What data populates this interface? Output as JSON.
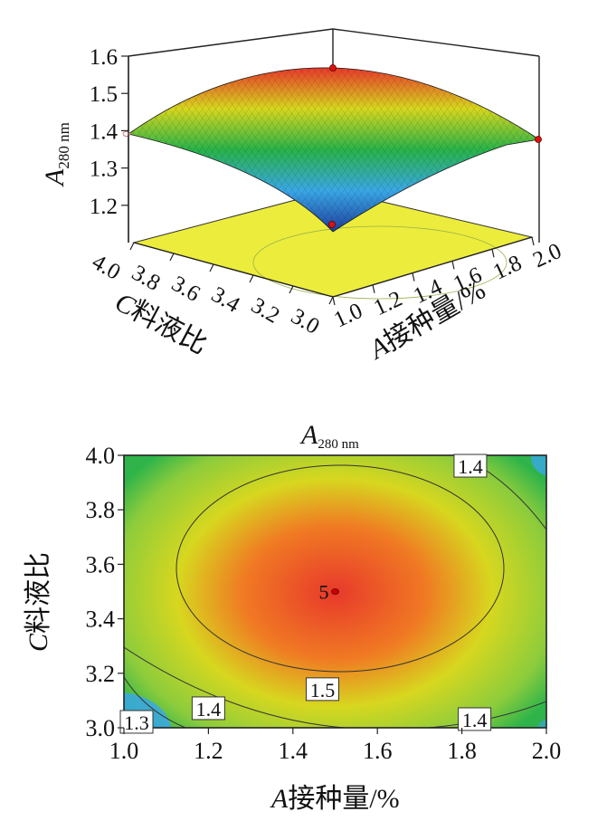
{
  "chart_data": [
    {
      "type": "surface3d",
      "zlabel_main": "A",
      "zlabel_sub": "280 nm",
      "xlabel_var": "A",
      "xlabel_text": "接种量/%",
      "ylabel_var": "C",
      "ylabel_text": "料液比",
      "x_ticks": [
        "1.0",
        "1.2",
        "1.4",
        "1.6",
        "1.8",
        "2.0"
      ],
      "y_ticks": [
        "3.0",
        "3.2",
        "3.4",
        "3.6",
        "3.8",
        "4.0"
      ],
      "z_ticks": [
        "1.2",
        "1.3",
        "1.4",
        "1.5",
        "1.6"
      ],
      "xlim": [
        1.0,
        2.0
      ],
      "ylim": [
        3.0,
        4.0
      ],
      "zlim": [
        1.1,
        1.6
      ],
      "peak": {
        "x": 1.5,
        "y": 3.5,
        "z": 1.56
      },
      "corner_values": {
        "x1_y3": 1.14,
        "x2_y3": 1.36,
        "x1_y4": 1.38,
        "x2_y4": 1.34
      },
      "floor_color": "#ecec3c",
      "colormap": [
        "#1e3f9e",
        "#3aa7e6",
        "#29b34a",
        "#d7d71f",
        "#e8392b"
      ]
    },
    {
      "type": "contour",
      "title_main": "A",
      "title_sub": "280 nm",
      "xlabel_var": "A",
      "xlabel_text": "接种量/%",
      "ylabel_var": "C",
      "ylabel_text": "料液比",
      "x_ticks": [
        "1.0",
        "1.2",
        "1.4",
        "1.6",
        "1.8",
        "2.0"
      ],
      "y_ticks": [
        "3.0",
        "3.2",
        "3.4",
        "3.6",
        "3.8",
        "4.0"
      ],
      "xlim": [
        1.0,
        2.0
      ],
      "ylim": [
        3.0,
        4.0
      ],
      "contour_levels": [
        1.3,
        1.4,
        1.5
      ],
      "contour_labels": [
        {
          "text": "1.4",
          "x": 1.82,
          "y": 3.96
        },
        {
          "text": "1.5",
          "x": 1.47,
          "y": 3.14
        },
        {
          "text": "1.4",
          "x": 1.2,
          "y": 3.07
        },
        {
          "text": "1.4",
          "x": 1.83,
          "y": 3.03
        },
        {
          "text": "1.3",
          "x": 1.03,
          "y": 3.02
        }
      ],
      "design_point": {
        "label": "5",
        "x": 1.5,
        "y": 3.5
      }
    }
  ]
}
